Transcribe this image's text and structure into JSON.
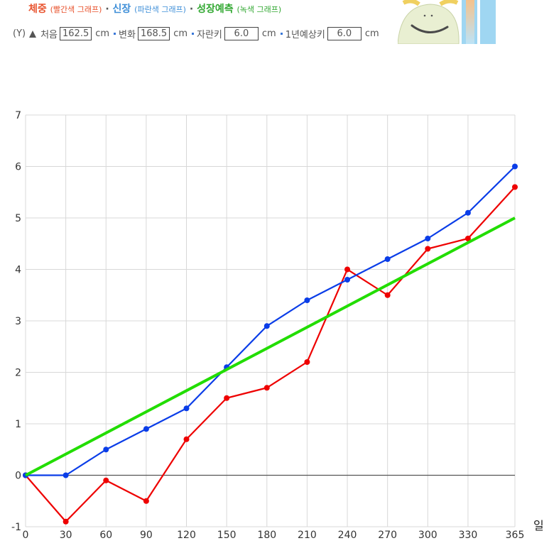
{
  "legend": {
    "weight": "체중",
    "weight_note": "(빨간색 그래프)",
    "sep1": "·",
    "height": "신장",
    "height_note": "(파란색 그래프)",
    "sep2": "·",
    "predict": "성장예측",
    "predict_note": "(녹색 그래프)"
  },
  "controls": {
    "y_prefix": "(Y)",
    "initial_label": "처음",
    "initial_value": "162.5",
    "unit1": "cm",
    "change_label": "변화",
    "change_value": "168.5",
    "unit2": "cm",
    "growth_label": "자란키",
    "growth_value": "6.0",
    "unit3": "cm",
    "yearly_label": "1년예상키",
    "yearly_value": "6.0",
    "unit4": "cm"
  },
  "x_unit": "일",
  "colors": {
    "weight": "#ee0000",
    "height": "#0a3de8",
    "predict": "#22dd00",
    "grid": "#d8d8d8",
    "axis": "#555555",
    "weight_text": "#e8532e",
    "height_text": "#3f8fd8",
    "predict_text": "#32a832"
  },
  "chart_data": {
    "type": "line",
    "x": [
      0,
      30,
      60,
      90,
      120,
      150,
      180,
      210,
      240,
      270,
      300,
      330,
      365
    ],
    "series": [
      {
        "name": "체중",
        "color": "#ee0000",
        "values": [
          0,
          -0.9,
          -0.1,
          -0.5,
          0.7,
          1.5,
          1.7,
          2.2,
          4.0,
          3.5,
          4.4,
          4.6,
          5.6
        ]
      },
      {
        "name": "신장",
        "color": "#0a3de8",
        "values": [
          0,
          0,
          0.5,
          0.9,
          1.3,
          2.1,
          2.9,
          3.4,
          3.8,
          4.2,
          4.6,
          5.1,
          6.0
        ]
      },
      {
        "name": "성장예측",
        "color": "#22dd00",
        "values": [
          0,
          5.0
        ],
        "x": [
          0,
          365
        ]
      }
    ],
    "xticks": [
      0,
      30,
      60,
      90,
      120,
      150,
      180,
      210,
      240,
      270,
      300,
      330,
      365
    ],
    "yticks": [
      -1,
      0,
      1,
      2,
      3,
      4,
      5,
      6,
      7
    ],
    "ylim": [
      -1,
      7
    ],
    "xlim": [
      0,
      365
    ],
    "grid": true
  }
}
